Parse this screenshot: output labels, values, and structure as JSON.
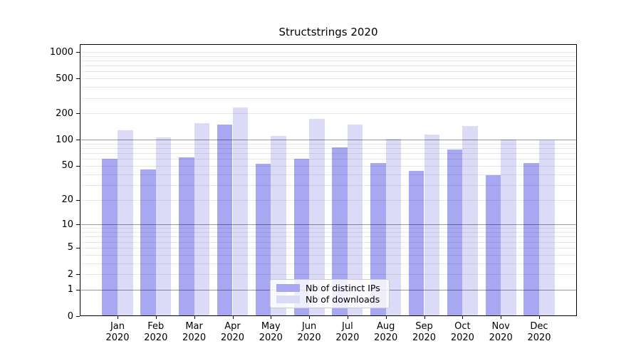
{
  "title": "Structstrings 2020",
  "chart_data": {
    "type": "bar",
    "title": "Structstrings 2020",
    "categories": [
      "Jan 2020",
      "Feb 2020",
      "Mar 2020",
      "Apr 2020",
      "May 2020",
      "Jun 2020",
      "Jul 2020",
      "Aug 2020",
      "Sep 2020",
      "Oct 2020",
      "Nov 2020",
      "Dec 2020"
    ],
    "series": [
      {
        "name": "Nb of distinct IPs",
        "color": "#a8a8f2",
        "values": [
          60,
          45,
          63,
          149,
          53,
          60,
          81,
          54,
          44,
          77,
          39,
          54
        ]
      },
      {
        "name": "Nb of downloads",
        "color": "#dbdbf8",
        "values": [
          129,
          107,
          154,
          233,
          111,
          172,
          150,
          103,
          114,
          143,
          100,
          98
        ]
      }
    ],
    "xlabel": "",
    "ylabel": "",
    "yscale": "log1p",
    "ytick_labels": [
      "0",
      "1",
      "2",
      "5",
      "10",
      "20",
      "50",
      "100",
      "200",
      "500",
      "1000"
    ],
    "yticks": [
      0,
      1,
      2,
      5,
      10,
      20,
      50,
      100,
      200,
      500,
      1000
    ],
    "ylim": [
      0,
      1200
    ],
    "grid": true,
    "legend_position": "lower center"
  },
  "colors": {
    "series_ips": "#a8a8f2",
    "series_downloads": "#dbdbf8",
    "grid_major": "#999999",
    "grid_minor": "#e8e8e8",
    "axis": "#000000",
    "legend_border": "#cccccc"
  }
}
